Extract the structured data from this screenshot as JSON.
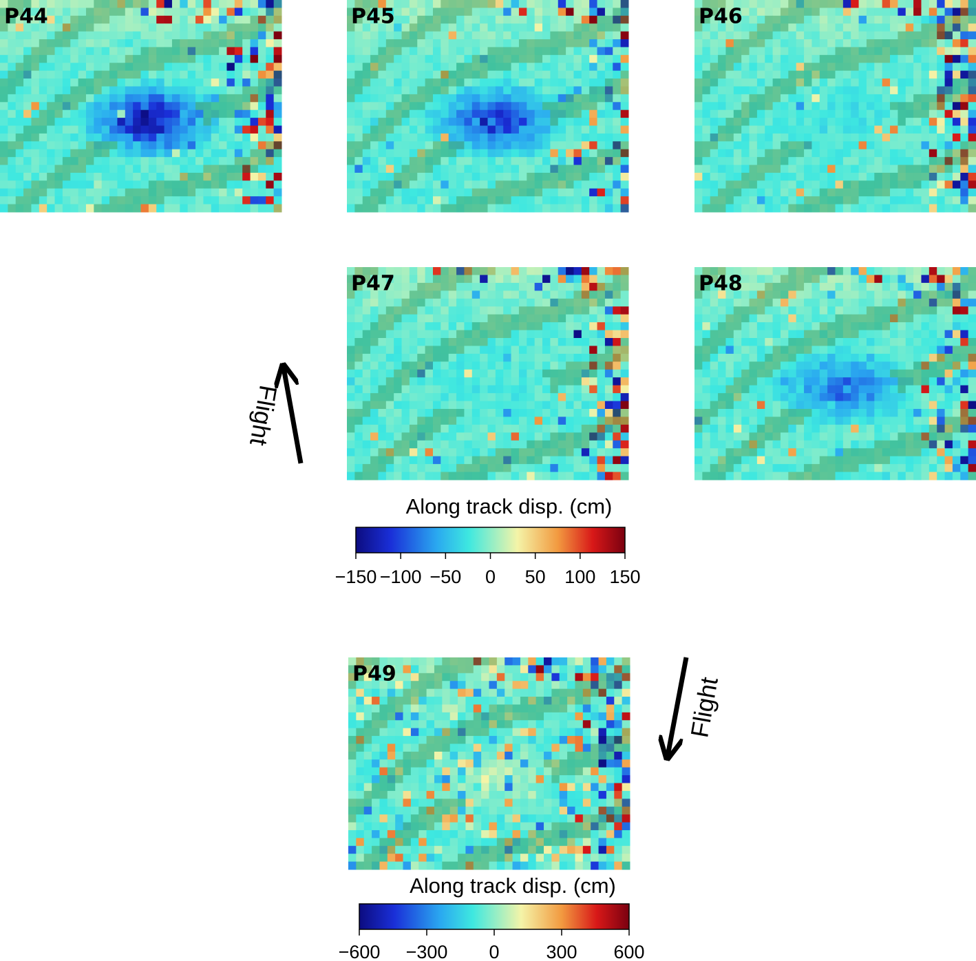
{
  "panels": [
    {
      "label": "P44"
    },
    {
      "label": "P45"
    },
    {
      "label": "P46"
    },
    {
      "label": "P47"
    },
    {
      "label": "P48"
    },
    {
      "label": "P49"
    }
  ],
  "flight_labels": [
    "Flight",
    "Flight"
  ],
  "colorbars": [
    {
      "title": "Along track disp. (cm)",
      "lim": [
        -150,
        150
      ],
      "ticks": [
        {
          "value": -150,
          "label": "−150"
        },
        {
          "value": -100,
          "label": "−100"
        },
        {
          "value": -50,
          "label": "−50"
        },
        0,
        50,
        100,
        150
      ]
    },
    {
      "title": "Along track disp. (cm)",
      "lim": [
        -600,
        600
      ],
      "ticks": [
        {
          "value": -600,
          "label": "−600"
        },
        {
          "value": -300,
          "label": "−300"
        },
        0,
        300,
        600
      ]
    }
  ]
}
